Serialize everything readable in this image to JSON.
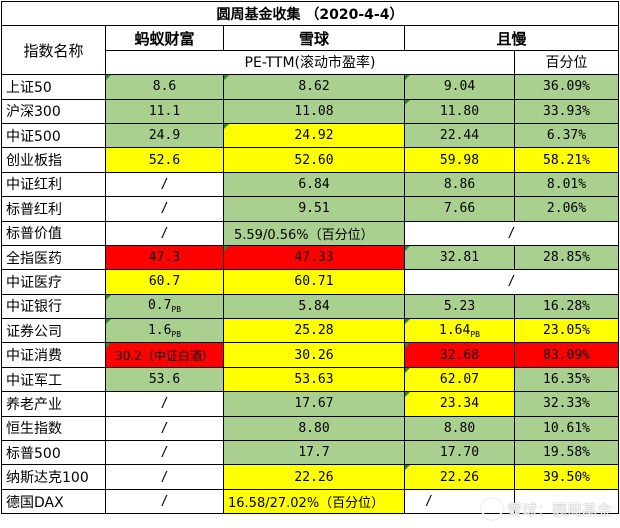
{
  "title": "圆周基金收集 （2020-4-4）",
  "headers": {
    "name_col": "指数名称",
    "mayi": "蚂蚁财富",
    "xueqiu": "雪球",
    "danman": "且慢",
    "pe_ttm": "PE-TTM(滚动市盈率)",
    "percentile": "百分位"
  },
  "rows": [
    {
      "name": "上证50",
      "mayi": "8.6",
      "xueqiu": "8.62",
      "danman_pe": "9.04",
      "danman_pct": "36.09%"
    },
    {
      "name": "沪深300",
      "mayi": "11.1",
      "xueqiu": "11.08",
      "danman_pe": "11.80",
      "danman_pct": "33.93%"
    },
    {
      "name": "中证500",
      "mayi": "24.9",
      "xueqiu": "24.92",
      "danman_pe": "22.44",
      "danman_pct": "6.37%"
    },
    {
      "name": "创业板指",
      "mayi": "52.6",
      "xueqiu": "52.60",
      "danman_pe": "59.98",
      "danman_pct": "58.21%"
    },
    {
      "name": "中证红利",
      "mayi": "/",
      "xueqiu": "6.84",
      "danman_pe": "8.86",
      "danman_pct": "8.01%"
    },
    {
      "name": "标普红利",
      "mayi": "/",
      "xueqiu": "9.51",
      "danman_pe": "7.66",
      "danman_pct": "2.06%"
    },
    {
      "name": "标普价值",
      "mayi": "/",
      "xueqiu": "5.59/0.56%（百分位）",
      "danman_merged": "/"
    },
    {
      "name": "全指医药",
      "mayi": "47.3",
      "xueqiu": "47.33",
      "danman_pe": "32.81",
      "danman_pct": "28.85%"
    },
    {
      "name": "中证医疗",
      "mayi": "60.7",
      "xueqiu": "60.71",
      "danman_merged": "/"
    },
    {
      "name": "中证银行",
      "mayi": "0.7",
      "mayi_sub": "PB",
      "xueqiu": "5.84",
      "danman_pe": "5.23",
      "danman_pct": "16.28%"
    },
    {
      "name": "证券公司",
      "mayi": "1.6",
      "mayi_sub": "PB",
      "xueqiu": "25.28",
      "danman_pe": "1.64",
      "danman_pe_sub": "PB",
      "danman_pct": "23.05%"
    },
    {
      "name": "中证消费",
      "mayi": "30.2（中证白酒）",
      "xueqiu": "30.26",
      "danman_pe": "32.68",
      "danman_pct": "83.09%"
    },
    {
      "name": "中证军工",
      "mayi": "53.6",
      "xueqiu": "53.63",
      "danman_pe": "62.07",
      "danman_pct": "16.35%"
    },
    {
      "name": "养老产业",
      "mayi": "/",
      "xueqiu": "17.67",
      "danman_pe": "23.34",
      "danman_pct": "32.33%"
    },
    {
      "name": "恒生指数",
      "mayi": "/",
      "xueqiu": "8.80",
      "danman_pe": "8.80",
      "danman_pct": "10.61%"
    },
    {
      "name": "标普500",
      "mayi": "/",
      "xueqiu": "17.7",
      "danman_pe": "17.70",
      "danman_pct": "19.58%"
    },
    {
      "name": "纳斯达克100",
      "mayi": "/",
      "xueqiu": "22.26",
      "danman_pe": "22.26",
      "danman_pct": "39.50%"
    },
    {
      "name": "德国DAX",
      "mayi": "/",
      "xueqiu": "16.58/27.02%（百分位）",
      "danman_pe": "/"
    }
  ],
  "colors": {
    "green": "#a9d08e",
    "yellow": "#ffff00",
    "red": "#ff0000"
  },
  "watermark": "雪球：圆周基金"
}
